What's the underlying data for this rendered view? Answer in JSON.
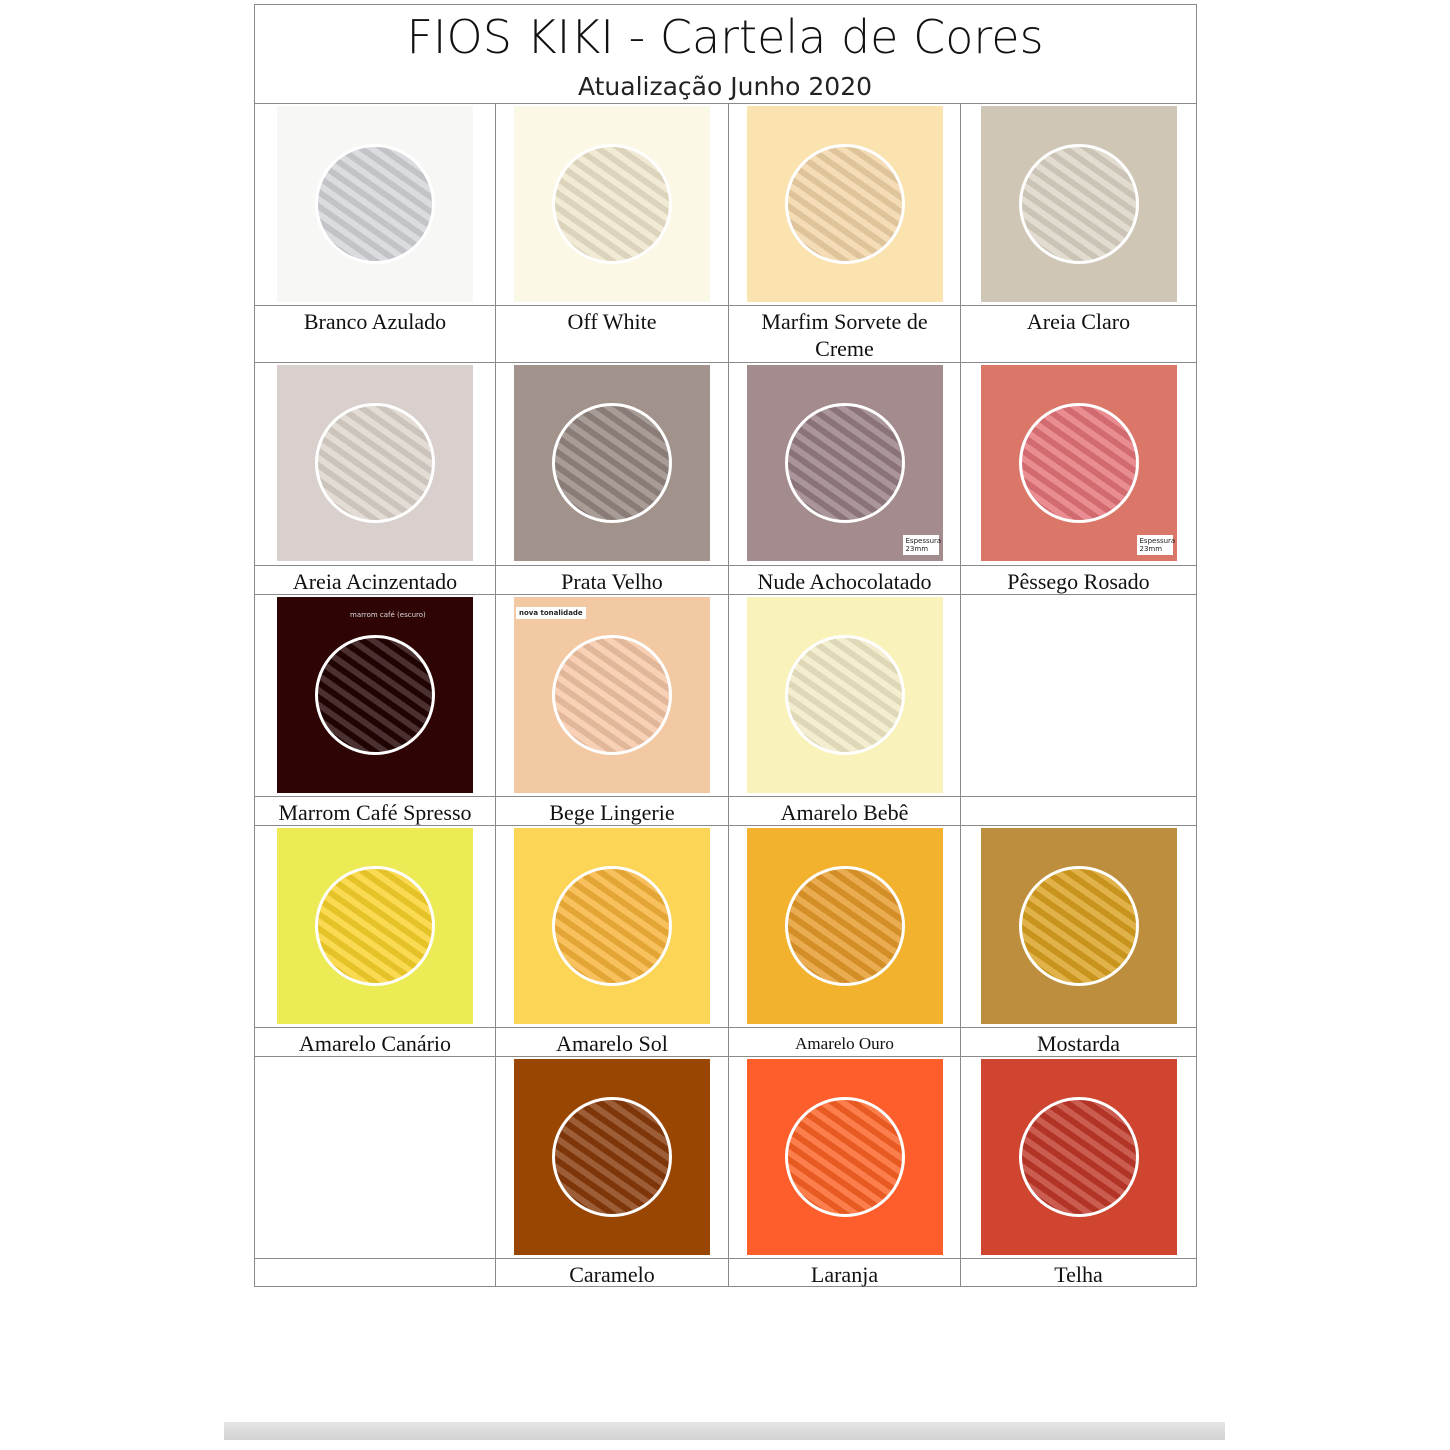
{
  "header": {
    "title": "FIOS KIKI - Cartela de Cores",
    "subtitle": "Atualização Junho 2020"
  },
  "table": {
    "rows": [
      [
        {
          "label": "Branco Azulado",
          "color": "#f7f7f5",
          "yarn": "#d2d4d8"
        },
        {
          "label": "Off White",
          "color": "#fcf8e6",
          "yarn": "#eee5cb"
        },
        {
          "label": "Marfim Sorvete de Creme",
          "color": "#fbe3b0",
          "yarn": "#f2d4a7"
        },
        {
          "label": "Areia Claro",
          "color": "#cfc6b6",
          "yarn": "#dcd4c6"
        }
      ],
      [
        {
          "label": "Areia Acinzentado",
          "color": "#d9d0ce",
          "yarn": "#dcd4cc"
        },
        {
          "label": "Prata Velho",
          "color": "#a1928c",
          "yarn": "#958680"
        },
        {
          "label": "Nude Achocolatado",
          "color": "#a48b8d",
          "yarn": "#967e84",
          "note": "Espessura 23mm"
        },
        {
          "label": "Pêssego Rosado",
          "color": "#db7769",
          "yarn": "#e4747a",
          "note": "Espessura 23mm"
        }
      ],
      [
        {
          "label": "Marrom Café Spresso",
          "color": "#2e0404",
          "yarn": "#230303",
          "note": "marrom café (escuro)"
        },
        {
          "label": "Bege Lingerie",
          "color": "#f3c9a4",
          "yarn": "#f5c6a6",
          "note": "nova tonalidade"
        },
        {
          "label": "Amarelo Bebê",
          "color": "#faf2bb",
          "yarn": "#f1eac7"
        },
        null
      ],
      [
        {
          "label": "Amarelo Canário",
          "color": "#ecea55",
          "yarn": "#f9d22c"
        },
        {
          "label": "Amarelo Sol",
          "color": "#fcd557",
          "yarn": "#f6b339"
        },
        {
          "label": "Amarelo Ouro",
          "color": "#f3b22e",
          "yarn": "#e69a2a"
        },
        {
          "label": "Mostarda",
          "color": "#bc8e3d",
          "yarn": "#d9a121"
        }
      ],
      [
        null,
        {
          "label": "Caramelo",
          "color": "#9a4603",
          "yarn": "#883a0b"
        },
        {
          "label": "Laranja",
          "color": "#fd5e2c",
          "yarn": "#fb6225"
        },
        {
          "label": "Telha",
          "color": "#cf4530",
          "yarn": "#c0382a"
        }
      ]
    ]
  }
}
